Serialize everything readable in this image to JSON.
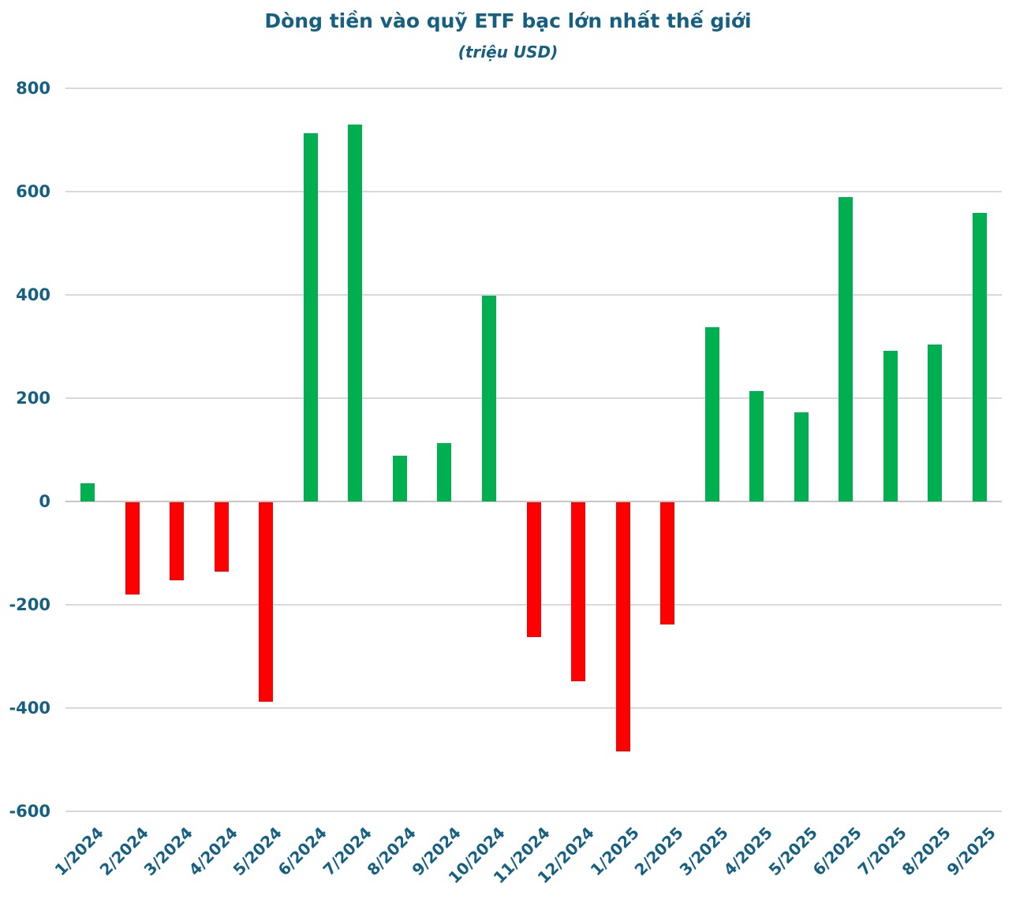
{
  "header": {
    "title": "Dòng tiền vào quỹ ETF bạc lớn nhất thế giới",
    "subtitle": "(triệu USD)"
  },
  "colors": {
    "title_text": "#156082",
    "axis_label_text": "#156082",
    "positive_bar": "#00B050",
    "negative_bar": "#FF0000",
    "gridline": "#D9D9D9",
    "zero_line": "#C6C6C6",
    "background": "#FFFFFF"
  },
  "chart_data": {
    "type": "bar",
    "title": "Dòng tiền vào quỹ ETF bạc lớn nhất thế giới",
    "subtitle": "(triệu USD)",
    "xlabel": "",
    "ylabel": "",
    "categories": [
      "1/2024",
      "2/2024",
      "3/2024",
      "4/2024",
      "5/2024",
      "6/2024",
      "7/2024",
      "8/2024",
      "9/2024",
      "10/2024",
      "11/2024",
      "12/2024",
      "1/2025",
      "2/2025",
      "3/2025",
      "4/2025",
      "5/2025",
      "6/2025",
      "7/2025",
      "8/2025",
      "9/2025"
    ],
    "values": [
      35,
      -178,
      -151,
      -135,
      -386,
      713,
      730,
      88,
      113,
      398,
      -261,
      -346,
      -482,
      -236,
      338,
      214,
      172,
      589,
      292,
      304,
      559
    ],
    "ylim": [
      -600,
      800
    ],
    "yticks": [
      800,
      600,
      400,
      200,
      0,
      -200,
      -400,
      -600
    ],
    "grid": true,
    "legend_position": "none",
    "color_rule": "positive values green, negative values red",
    "x_label_rotation_deg": -45
  }
}
